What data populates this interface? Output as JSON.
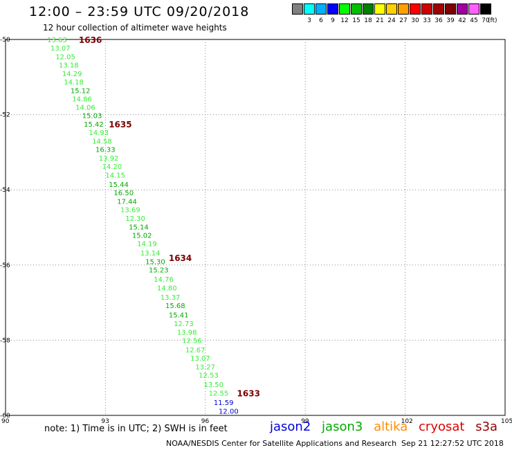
{
  "header": {
    "title": "12:00 – 23:59 UTC 09/20/2018",
    "subtitle": "12 hour collection of altimeter wave heights"
  },
  "color_scale": {
    "items": [
      {
        "label": "",
        "color": "#808080"
      },
      {
        "label": "3",
        "color": "#00ffff"
      },
      {
        "label": "6",
        "color": "#00b0ff"
      },
      {
        "label": "9",
        "color": "#0000ff"
      },
      {
        "label": "12",
        "color": "#00ff00"
      },
      {
        "label": "15",
        "color": "#00c000"
      },
      {
        "label": "18",
        "color": "#008000"
      },
      {
        "label": "21",
        "color": "#ffff00"
      },
      {
        "label": "24",
        "color": "#ffd000"
      },
      {
        "label": "27",
        "color": "#ffa000"
      },
      {
        "label": "30",
        "color": "#ff0000"
      },
      {
        "label": "33",
        "color": "#d00000"
      },
      {
        "label": "36",
        "color": "#a00000"
      },
      {
        "label": "39",
        "color": "#800000"
      },
      {
        "label": "42",
        "color": "#a000a0"
      },
      {
        "label": "45",
        "color": "#ff60ff"
      },
      {
        "label": "70",
        "color": "#000000"
      }
    ],
    "unit": "(ft)"
  },
  "map": {
    "x_ticks": [
      "90",
      "93",
      "96",
      "99",
      "102",
      "105"
    ],
    "y_ticks": [
      "-50",
      "-52",
      "-54",
      "-56",
      "-58",
      "-60"
    ],
    "time_markers": [
      {
        "label": "1636",
        "lon": 92.2,
        "lat": -50.0
      },
      {
        "label": "1635",
        "lon": 93.1,
        "lat": -52.25
      },
      {
        "label": "1634",
        "lon": 94.9,
        "lat": -55.8
      },
      {
        "label": "1633",
        "lon": 96.95,
        "lat": -59.4
      }
    ],
    "observations": [
      {
        "v": "13.63",
        "lon": 91.25,
        "lat": -50.0,
        "c": "#33ee33"
      },
      {
        "v": "13.07",
        "lon": 91.35,
        "lat": -50.22,
        "c": "#33ee33"
      },
      {
        "v": "12.05",
        "lon": 91.5,
        "lat": -50.45,
        "c": "#33ee33"
      },
      {
        "v": "13.18",
        "lon": 91.6,
        "lat": -50.67,
        "c": "#33ee33"
      },
      {
        "v": "14.29",
        "lon": 91.7,
        "lat": -50.9,
        "c": "#33ee33"
      },
      {
        "v": "14.18",
        "lon": 91.75,
        "lat": -51.12,
        "c": "#33ee33"
      },
      {
        "v": "15.12",
        "lon": 91.95,
        "lat": -51.35,
        "c": "#00aa00"
      },
      {
        "v": "14.86",
        "lon": 92.0,
        "lat": -51.57,
        "c": "#33ee33"
      },
      {
        "v": "14.06",
        "lon": 92.1,
        "lat": -51.8,
        "c": "#33ee33"
      },
      {
        "v": "15.03",
        "lon": 92.3,
        "lat": -52.02,
        "c": "#00aa00"
      },
      {
        "v": "15.42",
        "lon": 92.35,
        "lat": -52.25,
        "c": "#00aa00"
      },
      {
        "v": "14.93",
        "lon": 92.5,
        "lat": -52.47,
        "c": "#33ee33"
      },
      {
        "v": "14.58",
        "lon": 92.6,
        "lat": -52.7,
        "c": "#33ee33"
      },
      {
        "v": "16.33",
        "lon": 92.7,
        "lat": -52.92,
        "c": "#00aa00"
      },
      {
        "v": "13.92",
        "lon": 92.8,
        "lat": -53.15,
        "c": "#33ee33"
      },
      {
        "v": "14.20",
        "lon": 92.9,
        "lat": -53.37,
        "c": "#33ee33"
      },
      {
        "v": "14.15",
        "lon": 93.0,
        "lat": -53.6,
        "c": "#33ee33"
      },
      {
        "v": "15.44",
        "lon": 93.1,
        "lat": -53.85,
        "c": "#00aa00"
      },
      {
        "v": "16.50",
        "lon": 93.25,
        "lat": -54.07,
        "c": "#00aa00"
      },
      {
        "v": "17.44",
        "lon": 93.35,
        "lat": -54.3,
        "c": "#00aa00"
      },
      {
        "v": "13.69",
        "lon": 93.45,
        "lat": -54.52,
        "c": "#33ee33"
      },
      {
        "v": "12.30",
        "lon": 93.6,
        "lat": -54.75,
        "c": "#33ee33"
      },
      {
        "v": "15.14",
        "lon": 93.7,
        "lat": -54.98,
        "c": "#00aa00"
      },
      {
        "v": "15.02",
        "lon": 93.8,
        "lat": -55.2,
        "c": "#00aa00"
      },
      {
        "v": "14.19",
        "lon": 93.95,
        "lat": -55.42,
        "c": "#33ee33"
      },
      {
        "v": "13.14",
        "lon": 94.05,
        "lat": -55.67,
        "c": "#33ee33"
      },
      {
        "v": "15.30",
        "lon": 94.2,
        "lat": -55.9,
        "c": "#00aa00"
      },
      {
        "v": "15.23",
        "lon": 94.3,
        "lat": -56.12,
        "c": "#00aa00"
      },
      {
        "v": "14.76",
        "lon": 94.45,
        "lat": -56.37,
        "c": "#33ee33"
      },
      {
        "v": "14.80",
        "lon": 94.55,
        "lat": -56.6,
        "c": "#33ee33"
      },
      {
        "v": "13.37",
        "lon": 94.65,
        "lat": -56.85,
        "c": "#33ee33"
      },
      {
        "v": "15.68",
        "lon": 94.8,
        "lat": -57.07,
        "c": "#00aa00"
      },
      {
        "v": "15.41",
        "lon": 94.9,
        "lat": -57.32,
        "c": "#00aa00"
      },
      {
        "v": "12.73",
        "lon": 95.05,
        "lat": -57.55,
        "c": "#33ee33"
      },
      {
        "v": "13.98",
        "lon": 95.15,
        "lat": -57.78,
        "c": "#33ee33"
      },
      {
        "v": "12.56",
        "lon": 95.3,
        "lat": -58.0,
        "c": "#33ee33"
      },
      {
        "v": "12.67",
        "lon": 95.4,
        "lat": -58.25,
        "c": "#33ee33"
      },
      {
        "v": "13.07",
        "lon": 95.55,
        "lat": -58.47,
        "c": "#33ee33"
      },
      {
        "v": "13.27",
        "lon": 95.7,
        "lat": -58.7,
        "c": "#33ee33"
      },
      {
        "v": "12.53",
        "lon": 95.8,
        "lat": -58.92,
        "c": "#33ee33"
      },
      {
        "v": "13.50",
        "lon": 95.95,
        "lat": -59.17,
        "c": "#33ee33"
      },
      {
        "v": "12.55",
        "lon": 96.1,
        "lat": -59.4,
        "c": "#33ee33"
      },
      {
        "v": "11.59",
        "lon": 96.25,
        "lat": -59.65,
        "c": "#0000cc"
      },
      {
        "v": "12.00",
        "lon": 96.4,
        "lat": -59.88,
        "c": "#0000cc"
      }
    ]
  },
  "footer": {
    "note": "note: 1) Time is in UTC; 2) SWH is in feet",
    "satellites": [
      {
        "name": "jason2",
        "color": "#0000dd"
      },
      {
        "name": "jason3",
        "color": "#00aa00"
      },
      {
        "name": "altika",
        "color": "#ff8c00"
      },
      {
        "name": "cryosat",
        "color": "#dd0000"
      },
      {
        "name": "s3a",
        "color": "#990000"
      }
    ],
    "credit": "NOAA/NESDIS Center for Satellite Applications and Research",
    "timestamp": "Sep 21 12:27:52 UTC 2018"
  }
}
